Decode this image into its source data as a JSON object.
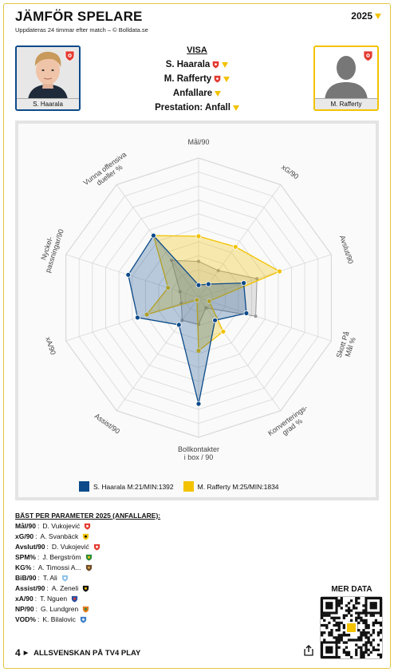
{
  "header": {
    "title": "JÄMFÖR SPELARE",
    "subtitle": "Uppdateras 24 timmar efter match – © Bolldata.se",
    "season": "2025"
  },
  "players": {
    "left": {
      "name": "S. Haarala"
    },
    "right": {
      "name": "M. Rafferty"
    }
  },
  "visa": {
    "heading": "VISA",
    "player1": "S. Haarala",
    "player2": "M. Rafferty",
    "position": "Anfallare",
    "prestation": "Prestation: Anfall"
  },
  "colors": {
    "player1": "#0c4a8a",
    "player2": "#f3c200",
    "border": "#e6c542"
  },
  "chart_data": {
    "type": "radar",
    "axes": [
      "Mål/90",
      "xG/90",
      "Avslut/90",
      "Skott På Mål %",
      "Konverterings-grad %",
      "Bollkontakter i box / 90",
      "Assist/90",
      "xA/90",
      "Nyckel-passningar/90",
      "Vunna offensiva dueller %"
    ],
    "axis_labels": [
      [
        "Mål/90"
      ],
      [
        "xG/90"
      ],
      [
        "Avslut/90"
      ],
      [
        "Skott På",
        "Mål %"
      ],
      [
        "Konverterings-",
        "grad %"
      ],
      [
        "Bollkontakter",
        "i box / 90"
      ],
      [
        "Assist/90"
      ],
      [
        "xA/90"
      ],
      [
        "Nyckel-",
        "passningar/90"
      ],
      [
        "Vunna offensiva",
        "dueller %"
      ]
    ],
    "rmax": 1,
    "rings": 10,
    "series": [
      {
        "name": "S. Haarala M:21/MIN:1392",
        "values": [
          0.09,
          0.12,
          0.34,
          0.36,
          0.2,
          0.76,
          0.24,
          0.46,
          0.53,
          0.55
        ]
      },
      {
        "name": "M. Rafferty M:25/MIN:1834",
        "values": [
          0.44,
          0.45,
          0.61,
          0.08,
          0.3,
          0.38,
          0.02,
          0.39,
          0.23,
          0.55
        ]
      }
    ],
    "league_avg": [
      0.26,
      0.24,
      0.44,
      0.43,
      0.09,
      0.19,
      0.2,
      0.13,
      0.14,
      0.33
    ]
  },
  "best": {
    "heading": "BÄST PER PARAMETER 2025 (ANFALLARE):",
    "items": [
      {
        "param": "Mål/90",
        "player": "D. Vukojević",
        "icon": "club-badge-red"
      },
      {
        "param": "xG/90",
        "player": "A. Svanbäck",
        "icon": "club-badge-yellow-black"
      },
      {
        "param": "Avslut/90",
        "player": "D. Vukojević",
        "icon": "club-badge-red"
      },
      {
        "param": "SPM%",
        "player": "J. Bergström",
        "icon": "club-badge-green"
      },
      {
        "param": "KG%",
        "player": "A. Timossi A...",
        "icon": "club-badge-brown"
      },
      {
        "param": "BiB/90",
        "player": "T. Ali",
        "icon": "club-badge-lightblue"
      },
      {
        "param": "Assist/90",
        "player": "A. Zeneli",
        "icon": "club-badge-black-yellow"
      },
      {
        "param": "xA/90",
        "player": "T. Nguen",
        "icon": "club-badge-multi"
      },
      {
        "param": "NP/90",
        "player": "G. Lundgren",
        "icon": "club-badge-orange-green"
      },
      {
        "param": "VOD%",
        "player": "K. Bilalovic",
        "icon": "club-badge-blue-round"
      }
    ]
  },
  "more_data": "MER DATA",
  "footer": {
    "text": "ALLSVENSKAN PÅ TV4 PLAY",
    "logo": "4",
    "share_icon": "share-icon"
  }
}
